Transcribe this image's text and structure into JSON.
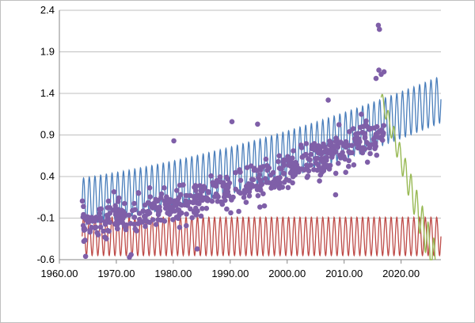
{
  "chart_data": {
    "type": "line",
    "title": "",
    "xlabel": "",
    "ylabel": "",
    "xlim": [
      1960,
      2027
    ],
    "ylim": [
      -0.6,
      2.4
    ],
    "x_ticks": [
      1960,
      1970,
      1980,
      1990,
      2000,
      2010,
      2020
    ],
    "x_tick_labels": [
      "1960.00",
      "1970.00",
      "1980.00",
      "1990.00",
      "2000.00",
      "2010.00",
      "2020.00"
    ],
    "y_ticks": [
      -0.6,
      -0.1,
      0.4,
      0.9,
      1.4,
      1.9,
      2.4
    ],
    "y_tick_labels": [
      "-0.6",
      "-0.1",
      "0.4",
      "0.9",
      "1.4",
      "1.9",
      "2.4"
    ],
    "grid": "horizontal",
    "legend": "none",
    "series": [
      {
        "kind": "line",
        "color": "#4a7ebb",
        "x_range": [
          1964,
          2027
        ],
        "trend_start": 0.1,
        "trend_end": 1.33,
        "amplitude": 0.28,
        "period_years": 1.0
      },
      {
        "kind": "line",
        "color": "#be4b48",
        "x_range": [
          1964,
          2027
        ],
        "center": -0.32,
        "amplitude": 0.23,
        "period_years": 1.0
      },
      {
        "kind": "line",
        "color": "#98b954",
        "x_range": [
          2016.5,
          2026
        ],
        "start_level": 1.35,
        "end_level": -0.65,
        "amplitude": 0.08,
        "period_years": 1.0
      },
      {
        "kind": "scatter",
        "color": "#7f5fa8",
        "x_range": [
          1964,
          2017
        ],
        "trend_start": -0.2,
        "trend_end": 0.95,
        "spread": 0.35,
        "count": 560,
        "outliers": [
          {
            "x": 2016.0,
            "y": 2.22
          },
          {
            "x": 2016.2,
            "y": 2.17
          },
          {
            "x": 2016.1,
            "y": 1.68
          },
          {
            "x": 2016.5,
            "y": 1.63
          },
          {
            "x": 2017.0,
            "y": 1.66
          },
          {
            "x": 2015.6,
            "y": 1.58
          },
          {
            "x": 2007.2,
            "y": 1.32
          },
          {
            "x": 1980.1,
            "y": 0.83
          },
          {
            "x": 1972.3,
            "y": -0.57
          },
          {
            "x": 1972.6,
            "y": -0.54
          },
          {
            "x": 1990.3,
            "y": 1.06
          },
          {
            "x": 1994.8,
            "y": 1.03
          },
          {
            "x": 2008.5,
            "y": 0.18
          },
          {
            "x": 1984.2,
            "y": -0.47
          }
        ]
      }
    ]
  }
}
